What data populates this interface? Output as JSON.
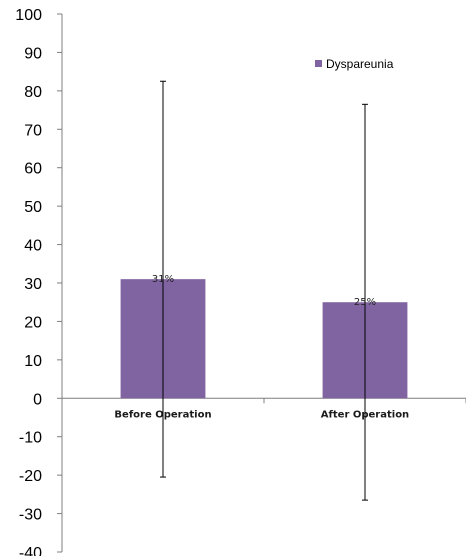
{
  "chart_data": {
    "type": "bar",
    "categories": [
      "Before Operation",
      "After Operation"
    ],
    "series": [
      {
        "name": "Dyspareunia",
        "values": [
          31,
          25
        ],
        "error_upper": [
          82.5,
          76.5
        ],
        "error_lower": [
          -20.5,
          -26.5
        ],
        "data_labels": [
          "31%",
          "25%"
        ],
        "color": "#8064a2"
      }
    ],
    "ylim": [
      -40,
      100
    ],
    "yticks": [
      100,
      90,
      80,
      70,
      60,
      50,
      40,
      30,
      20,
      10,
      0,
      -10,
      -20,
      -30,
      -40
    ],
    "grid": false,
    "legend_position": "top-right"
  }
}
